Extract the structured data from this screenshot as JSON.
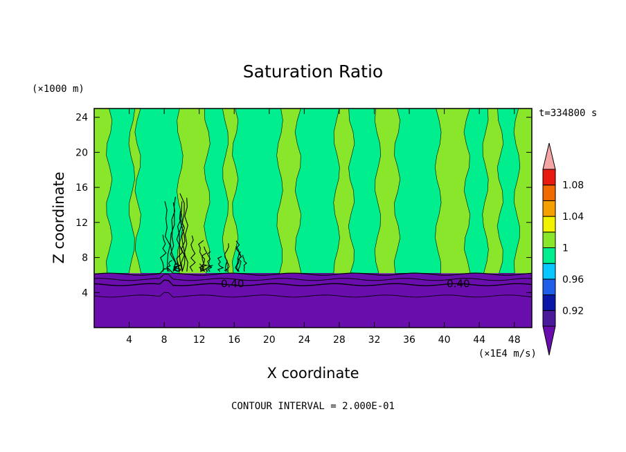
{
  "chart_data": {
    "type": "heatmap",
    "title": "Saturation Ratio",
    "xlabel": "X coordinate",
    "ylabel": "Z coordinate",
    "x_units": "(×1E4 m/s)",
    "y_units": "(×1000 m)",
    "time_label": "t=334800 s",
    "contour_interval_text": "CONTOUR INTERVAL = 2.000E-01",
    "contour_labels": [
      {
        "x": 15.8,
        "z": 5.0,
        "text": "0.40"
      },
      {
        "x": 41.6,
        "z": 5.0,
        "text": "0.40"
      }
    ],
    "xlim": [
      0,
      50
    ],
    "ylim": [
      0,
      25
    ],
    "xticks": [
      4,
      8,
      12,
      16,
      20,
      24,
      28,
      32,
      36,
      40,
      44,
      48
    ],
    "yticks": [
      4,
      8,
      12,
      16,
      20,
      24
    ],
    "colorbar": {
      "levels": [
        0.9,
        0.92,
        0.94,
        0.96,
        0.98,
        1.0,
        1.02,
        1.04,
        1.06,
        1.08,
        1.1
      ],
      "colors": [
        "#4b1a9b",
        "#0a16a8",
        "#1f5ee8",
        "#08c8ff",
        "#00ee8e",
        "#8ae62a",
        "#f2f200",
        "#f5a000",
        "#f06a00",
        "#e81a10",
        "#f4a5a5"
      ],
      "under_color": "#6a0dad",
      "labels": [
        "0.92",
        "0.96",
        "1",
        "1.04",
        "1.08"
      ],
      "label_values": [
        0.92,
        0.96,
        1.0,
        1.04,
        1.08
      ]
    },
    "layers": {
      "lower_ratio_color": "#6a0dad",
      "lower_z_top": 6.2,
      "upper_base_color": "#8ae62a"
    },
    "green_columns": [
      {
        "x0": 1.7,
        "x1": 4.3
      },
      {
        "x0": 5.0,
        "x1": 9.8
      },
      {
        "x0": 12.9,
        "x1": 15.0
      },
      {
        "x0": 16.1,
        "x1": 21.2
      },
      {
        "x0": 23.3,
        "x1": 27.7
      },
      {
        "x0": 29.4,
        "x1": 32.4
      },
      {
        "x0": 34.6,
        "x1": 39.3
      },
      {
        "x0": 42.6,
        "x1": 44.7
      },
      {
        "x0": 46.4,
        "x1": 48.3
      }
    ]
  }
}
